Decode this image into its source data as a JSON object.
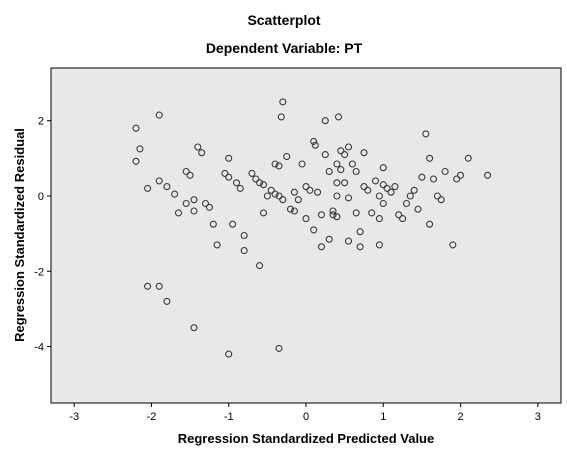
{
  "chart_data": {
    "type": "scatter",
    "title": "Scatterplot",
    "subtitle": "Dependent Variable: PT",
    "xlabel": "Regression Standardized Predicted Value",
    "ylabel": "Regression Standardized Residual",
    "xlim": [
      -3.3,
      3.3
    ],
    "ylim": [
      -5.5,
      3.4
    ],
    "xticks": [
      -3,
      -2,
      -1,
      0,
      1,
      2,
      3
    ],
    "yticks": [
      -4,
      -2,
      0,
      2
    ],
    "xtick_labels": [
      "-3",
      "-2",
      "-1",
      "0",
      "1",
      "2",
      "3"
    ],
    "ytick_labels": [
      "-4",
      "-2",
      "0",
      "2"
    ],
    "grid": false,
    "colors": {
      "plot_background": "#e8e8e8",
      "marker_stroke": "#3a3a3a",
      "frame": "#000000"
    },
    "points": [
      [
        -2.2,
        1.8
      ],
      [
        -2.15,
        1.25
      ],
      [
        -2.2,
        0.92
      ],
      [
        -2.05,
        0.2
      ],
      [
        -1.9,
        2.15
      ],
      [
        -1.9,
        0.4
      ],
      [
        -1.8,
        0.25
      ],
      [
        -1.7,
        0.05
      ],
      [
        -1.65,
        -0.45
      ],
      [
        -1.55,
        0.65
      ],
      [
        -1.5,
        0.55
      ],
      [
        -1.55,
        -0.2
      ],
      [
        -1.45,
        -0.1
      ],
      [
        -1.45,
        -0.4
      ],
      [
        -1.4,
        1.3
      ],
      [
        -1.35,
        1.15
      ],
      [
        -1.3,
        -0.2
      ],
      [
        -1.25,
        -0.3
      ],
      [
        -1.2,
        -0.75
      ],
      [
        -1.15,
        -1.3
      ],
      [
        -1.05,
        0.6
      ],
      [
        -1.0,
        1.0
      ],
      [
        -1.0,
        0.5
      ],
      [
        -0.95,
        -0.75
      ],
      [
        -0.9,
        0.35
      ],
      [
        -0.85,
        0.2
      ],
      [
        -0.8,
        -1.05
      ],
      [
        -0.8,
        -1.45
      ],
      [
        -0.7,
        0.6
      ],
      [
        -0.65,
        0.45
      ],
      [
        -0.6,
        0.35
      ],
      [
        -0.55,
        0.3
      ],
      [
        -0.55,
        -0.45
      ],
      [
        -0.6,
        -1.85
      ],
      [
        -0.5,
        0.0
      ],
      [
        -0.45,
        0.15
      ],
      [
        -0.4,
        0.05
      ],
      [
        -0.35,
        0.0
      ],
      [
        -0.3,
        -0.1
      ],
      [
        -0.4,
        0.85
      ],
      [
        -0.35,
        0.8
      ],
      [
        -0.3,
        2.5
      ],
      [
        -0.32,
        2.1
      ],
      [
        -0.25,
        1.05
      ],
      [
        -0.2,
        -0.35
      ],
      [
        -0.15,
        -0.4
      ],
      [
        -0.1,
        -0.1
      ],
      [
        -0.15,
        0.1
      ],
      [
        -0.05,
        0.85
      ],
      [
        0.0,
        0.25
      ],
      [
        0.05,
        0.15
      ],
      [
        0.1,
        1.45
      ],
      [
        0.12,
        1.35
      ],
      [
        0.15,
        0.1
      ],
      [
        0.0,
        -0.6
      ],
      [
        0.1,
        -0.9
      ],
      [
        0.2,
        -0.5
      ],
      [
        0.2,
        -1.35
      ],
      [
        0.25,
        1.1
      ],
      [
        0.25,
        2.0
      ],
      [
        0.3,
        -1.15
      ],
      [
        0.35,
        -0.4
      ],
      [
        0.35,
        -0.5
      ],
      [
        0.4,
        0.0
      ],
      [
        0.4,
        -0.55
      ],
      [
        0.4,
        0.35
      ],
      [
        0.4,
        0.85
      ],
      [
        0.45,
        0.7
      ],
      [
        0.45,
        1.2
      ],
      [
        0.42,
        2.1
      ],
      [
        0.5,
        1.1
      ],
      [
        0.5,
        0.35
      ],
      [
        0.55,
        -0.05
      ],
      [
        0.55,
        -1.2
      ],
      [
        0.6,
        0.85
      ],
      [
        0.65,
        0.65
      ],
      [
        0.65,
        -0.45
      ],
      [
        0.7,
        -1.35
      ],
      [
        0.7,
        -0.95
      ],
      [
        0.75,
        0.25
      ],
      [
        0.75,
        1.15
      ],
      [
        0.8,
        0.15
      ],
      [
        0.85,
        -0.45
      ],
      [
        0.9,
        0.4
      ],
      [
        0.95,
        0.0
      ],
      [
        0.95,
        -0.6
      ],
      [
        0.95,
        -1.3
      ],
      [
        1.0,
        0.3
      ],
      [
        1.0,
        -0.2
      ],
      [
        1.05,
        0.2
      ],
      [
        1.0,
        0.75
      ],
      [
        1.1,
        0.1
      ],
      [
        1.15,
        0.25
      ],
      [
        1.2,
        -0.5
      ],
      [
        1.25,
        -0.6
      ],
      [
        1.3,
        -0.2
      ],
      [
        1.35,
        0.0
      ],
      [
        1.4,
        0.15
      ],
      [
        1.45,
        -0.35
      ],
      [
        1.5,
        0.5
      ],
      [
        1.55,
        1.65
      ],
      [
        1.6,
        1.0
      ],
      [
        1.65,
        0.45
      ],
      [
        1.7,
        0.0
      ],
      [
        1.75,
        -0.1
      ],
      [
        1.8,
        0.65
      ],
      [
        1.9,
        -1.3
      ],
      [
        1.95,
        0.45
      ],
      [
        2.0,
        0.55
      ],
      [
        2.1,
        1.0
      ],
      [
        2.35,
        0.55
      ],
      [
        -2.05,
        -2.4
      ],
      [
        -1.8,
        -2.8
      ],
      [
        -1.45,
        -3.5
      ],
      [
        -1.0,
        -4.2
      ],
      [
        -0.35,
        -4.05
      ],
      [
        0.55,
        1.3
      ],
      [
        -1.9,
        -2.4
      ],
      [
        0.3,
        0.65
      ],
      [
        1.6,
        -0.75
      ]
    ]
  }
}
